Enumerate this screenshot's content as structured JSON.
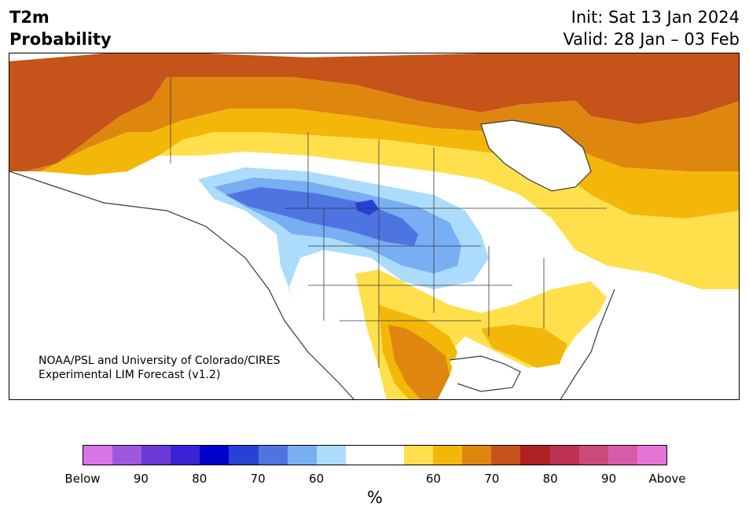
{
  "header": {
    "title_line1": "T2m",
    "title_line2": "Probability",
    "init_text": "Init: Sat 13 Jan 2024",
    "valid_text": "Valid: 28 Jan – 03 Feb"
  },
  "credit": {
    "line1": "NOAA/PSL and University of Colorado/CIRES",
    "line2": "Experimental LIM Forecast (v1.2)"
  },
  "colorbar": {
    "colors": [
      "#d674e8",
      "#9e58e0",
      "#6d3ada",
      "#3b22d6",
      "#0000cc",
      "#2741d6",
      "#4e74e2",
      "#78aef2",
      "#acdcfb",
      "#ffffff",
      "#ffffff",
      "#ffe04c",
      "#f3b70a",
      "#df860f",
      "#c5531a",
      "#b02020",
      "#be3251",
      "#cc4a7a",
      "#d85ca8",
      "#e674d8"
    ],
    "labels": [
      "Below",
      "90",
      "80",
      "70",
      "60",
      "60",
      "70",
      "80",
      "90",
      "Above"
    ],
    "unit": "%"
  },
  "map": {
    "ocean": "#ffffff",
    "border_color": "#3a3a3a"
  }
}
